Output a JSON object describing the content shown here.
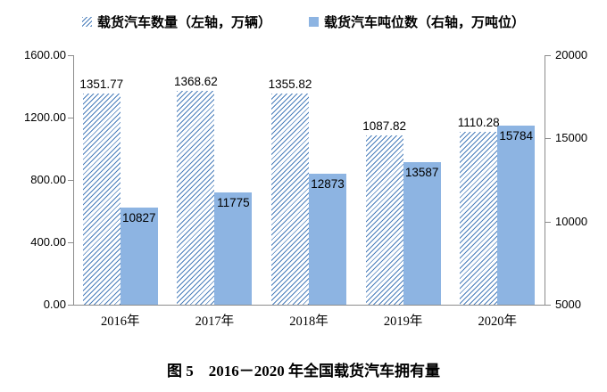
{
  "legend": {
    "items": [
      {
        "label": "载货汽车数量（左轴，万辆）",
        "swatch": "hatched"
      },
      {
        "label": "载货汽车吨位数（右轴，万吨位）",
        "swatch": "solid"
      }
    ]
  },
  "caption": "图 5　2016－2020 年全国载货汽车拥有量",
  "colors": {
    "bar_solid": "#8DB4E2",
    "hatch_line": "#4A7EBB",
    "axis": "#8c8c8c",
    "text": "#000000"
  },
  "chart_data": {
    "type": "bar",
    "title": "图 5　2016－2020 年全国载货汽车拥有量",
    "categories": [
      "2016年",
      "2017年",
      "2018年",
      "2019年",
      "2020年"
    ],
    "series": [
      {
        "name": "载货汽车数量（左轴，万辆）",
        "axis": "left",
        "style": "hatched",
        "label_format": "fixed2",
        "values": [
          1351.77,
          1368.62,
          1355.82,
          1087.82,
          1110.28
        ]
      },
      {
        "name": "载货汽车吨位数（右轴，万吨位）",
        "axis": "right",
        "style": "solid",
        "label_format": "int",
        "values": [
          10827,
          11775,
          12873,
          13587,
          15784
        ]
      }
    ],
    "left_axis": {
      "min": 0,
      "max": 1600,
      "ticks": [
        "0.00",
        "400.00",
        "800.00",
        "1200.00",
        "1600.00"
      ]
    },
    "right_axis": {
      "min": 5000,
      "max": 20000,
      "ticks": [
        "5000",
        "10000",
        "15000",
        "20000"
      ]
    },
    "legend_position": "top",
    "grid": false,
    "data_labels": true
  }
}
